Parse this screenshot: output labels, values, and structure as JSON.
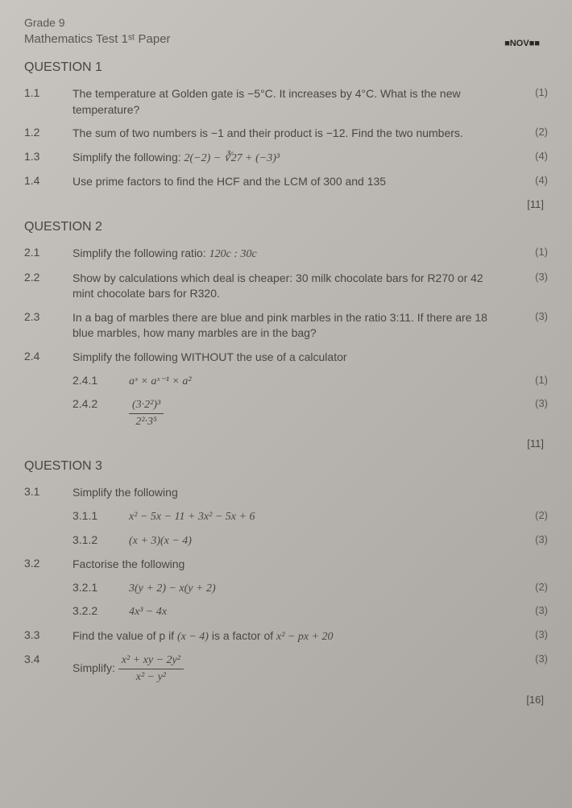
{
  "header": {
    "grade": "Grade 9",
    "title": "Mathematics Test 1ˢᵗ Paper",
    "stamp": "■NOV■■"
  },
  "q1": {
    "header": "QUESTION 1",
    "items": {
      "n11": "1.1",
      "t11": "The temperature at Golden gate is −5°C. It increases by 4°C. What is the new temperature?",
      "m11": "(1)",
      "n12": "1.2",
      "t12": "The sum of two numbers is −1 and their product is −12. Find the two numbers.",
      "m12": "(2)",
      "n13": "1.3",
      "t13_pre": "Simplify the following:   ",
      "t13_math": "2(−2) − ∛27 + (−3)³",
      "m13": "(4)",
      "n14": "1.4",
      "t14": "Use prime factors to find the HCF and the LCM of 300 and 135",
      "m14": "(4)"
    },
    "total": "[11]"
  },
  "q2": {
    "header": "QUESTION 2",
    "items": {
      "n21": "2.1",
      "t21_pre": "Simplify the following ratio:  ",
      "t21_math": "120c : 30c",
      "m21": "(1)",
      "n22": "2.2",
      "t22": "Show by calculations which deal is cheaper: 30 milk chocolate bars for R270 or 42 mint chocolate bars for R320.",
      "m22": "(3)",
      "n23": "2.3",
      "t23": "In a bag of marbles there are blue and pink marbles in the ratio 3:11. If there are 18 blue marbles, how many marbles are in the bag?",
      "m23": "(3)",
      "n24": "2.4",
      "t24": "Simplify the following WITHOUT the use of a calculator",
      "n241": "2.4.1",
      "t241": "aˣ × aˣ⁻¹ × a²",
      "m241": "(1)",
      "n242": "2.4.2",
      "t242_num": "(3·2²)³",
      "t242_den": "2²·3⁵",
      "m242": "(3)"
    },
    "total": "[11]"
  },
  "q3": {
    "header": "QUESTION 3",
    "items": {
      "n31": "3.1",
      "t31": "Simplify the following",
      "n311": "3.1.1",
      "t311": "x² − 5x − 11 + 3x² − 5x + 6",
      "m311": "(2)",
      "n312": "3.1.2",
      "t312": "(x + 3)(x − 4)",
      "m312": "(3)",
      "n32": "3.2",
      "t32": "Factorise the following",
      "n321": "3.2.1",
      "t321": "3(y + 2) − x(y + 2)",
      "m321": "(2)",
      "n322": "3.2.2",
      "t322": "4x³ − 4x",
      "m322": "(3)",
      "n33": "3.3",
      "t33_pre": "Find the value of p if ",
      "t33_mid": "(x − 4)",
      "t33_post": " is a factor of ",
      "t33_math": "x² − px + 20",
      "m33": "(3)",
      "n34": "3.4",
      "t34_pre": "Simplify: ",
      "t34_num": "x² + xy − 2y²",
      "t34_den": "x² − y²",
      "m34": "(3)"
    },
    "total": "[16]"
  }
}
